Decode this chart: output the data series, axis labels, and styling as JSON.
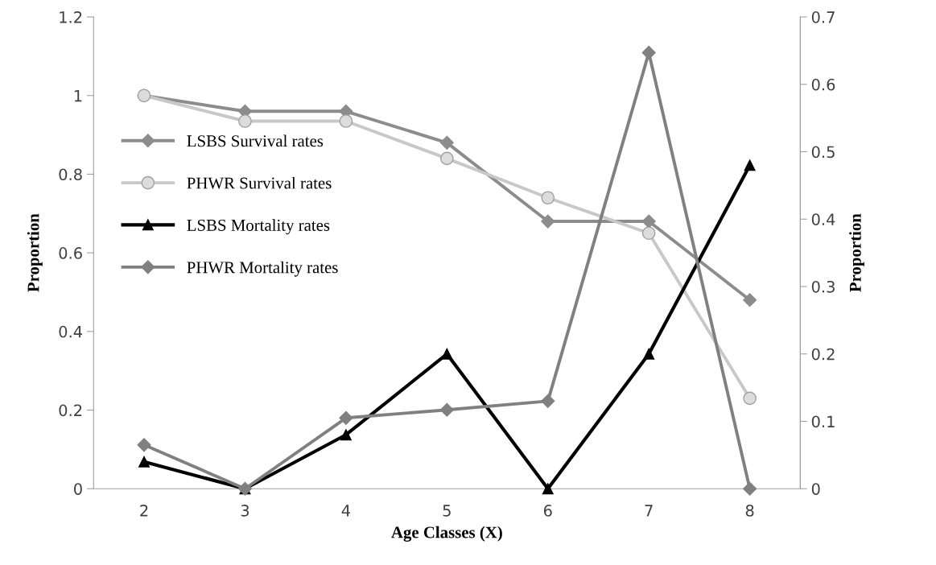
{
  "chart_data": {
    "type": "line",
    "xlabel": "Age Classes (X)",
    "ylabel": "Proportion",
    "y2label": "Proportion",
    "categories": [
      "2",
      "3",
      "4",
      "5",
      "6",
      "7",
      "8"
    ],
    "series": [
      {
        "name": "LSBS Survival rates",
        "color": "#8c8c8c",
        "marker": "diamond",
        "values": [
          1.0,
          0.96,
          0.96,
          0.88,
          0.68,
          0.68,
          0.48
        ]
      },
      {
        "name": "PHWR Survival rates",
        "color": "#c8c8c8",
        "marker": "circle",
        "values": [
          1.0,
          0.935,
          0.935,
          0.84,
          0.74,
          0.65,
          0.23
        ]
      },
      {
        "name": "LSBS Mortality rates",
        "color": "#000000",
        "marker": "triangle",
        "axis": "y2",
        "values": [
          0.04,
          0,
          0.08,
          0.2,
          0,
          0.2,
          0.48
        ]
      },
      {
        "name": "PHWR Mortality rates",
        "color": "#808080",
        "marker": "diamond",
        "axis": "y2",
        "values": [
          0.065,
          0,
          0.105,
          0.117,
          0.13,
          0.647,
          0
        ]
      }
    ],
    "ylim": [
      0,
      1.2
    ],
    "yticks": [
      0,
      0.2,
      0.4,
      0.6,
      0.8,
      1,
      1.2
    ],
    "y2lim": [
      0,
      0.7
    ],
    "y2ticks": [
      0,
      0.1,
      0.2,
      0.3,
      0.4,
      0.5,
      0.6,
      0.7
    ],
    "grid": false,
    "legend": "left",
    "line_style": "solid"
  }
}
